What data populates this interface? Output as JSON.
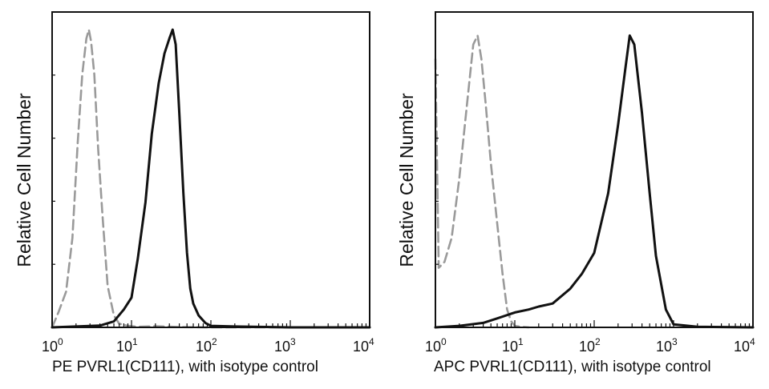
{
  "chart_data": [
    {
      "type": "line",
      "subtype": "flow-cytometry-histogram",
      "xlabel": "PE  PVRL1(CD111),  with isotype control",
      "ylabel": "Relative Cell Number",
      "xscale": "log",
      "xlim": [
        1,
        10000
      ],
      "ylim": [
        0,
        1
      ],
      "x_ticks": [
        {
          "base": "10",
          "exp": "0"
        },
        {
          "base": "10",
          "exp": "1"
        },
        {
          "base": "10",
          "exp": "2"
        },
        {
          "base": "10",
          "exp": "3"
        },
        {
          "base": "10",
          "exp": "4"
        }
      ],
      "series": [
        {
          "name": "Isotype control",
          "color": "#9a9a9a",
          "style": "dashed",
          "x": [
            1.0,
            1.2,
            1.5,
            1.8,
            2.1,
            2.4,
            2.7,
            2.9,
            3.1,
            3.4,
            3.8,
            4.3,
            5.0,
            6.0,
            7.0,
            9.0,
            12.0,
            20.0,
            40.0,
            100.0,
            1000.0,
            10000.0
          ],
          "values": [
            0.0,
            0.05,
            0.12,
            0.3,
            0.62,
            0.85,
            0.97,
            1.0,
            0.96,
            0.85,
            0.6,
            0.38,
            0.14,
            0.04,
            0.012,
            0.005,
            0.002,
            0.004,
            0.001,
            0.0,
            0.0,
            0.0
          ]
        },
        {
          "name": "PVRL1(CD111)",
          "color": "#111111",
          "style": "solid",
          "x": [
            1.0,
            2.0,
            4.0,
            6.0,
            8.0,
            10.0,
            12.0,
            15.0,
            18.0,
            22.0,
            26.0,
            30.0,
            33.0,
            36.0,
            40.0,
            45.0,
            50.0,
            55.0,
            60.0,
            70.0,
            85.0,
            100.0,
            200.0,
            1000.0,
            10000.0
          ],
          "values": [
            0.0,
            0.003,
            0.006,
            0.02,
            0.06,
            0.1,
            0.23,
            0.42,
            0.65,
            0.82,
            0.92,
            0.97,
            1.0,
            0.95,
            0.72,
            0.45,
            0.25,
            0.13,
            0.08,
            0.04,
            0.015,
            0.005,
            0.003,
            0.0,
            0.0
          ]
        }
      ]
    },
    {
      "type": "line",
      "subtype": "flow-cytometry-histogram",
      "xlabel": "APC PVRL1(CD111), with isotype control",
      "ylabel": "Relative Cell Number",
      "xscale": "log",
      "xlim": [
        1,
        10000
      ],
      "ylim": [
        0,
        1
      ],
      "x_ticks": [
        {
          "base": "10",
          "exp": "0"
        },
        {
          "base": "10",
          "exp": "1"
        },
        {
          "base": "10",
          "exp": "2"
        },
        {
          "base": "10",
          "exp": "3"
        },
        {
          "base": "10",
          "exp": "4"
        }
      ],
      "series": [
        {
          "name": "Isotype control",
          "color": "#9a9a9a",
          "style": "dashed",
          "x": [
            1.0,
            1.1,
            1.3,
            1.6,
            2.0,
            2.5,
            3.0,
            3.4,
            3.8,
            4.3,
            5.0,
            6.0,
            7.0,
            8.0,
            9.0,
            10.0,
            12.0,
            15.0
          ],
          "values": [
            0.9,
            0.2,
            0.22,
            0.3,
            0.5,
            0.75,
            0.95,
            0.98,
            0.9,
            0.75,
            0.55,
            0.35,
            0.18,
            0.06,
            0.02,
            0.005,
            0.002,
            0.0
          ]
        },
        {
          "name": "PVRL1(CD111)",
          "color": "#111111",
          "style": "solid",
          "x": [
            1.0,
            2.0,
            4.0,
            6.0,
            10.0,
            15.0,
            20.0,
            30.0,
            50.0,
            70.0,
            100.0,
            150.0,
            200.0,
            250.0,
            280.0,
            320.0,
            400.0,
            500.0,
            600.0,
            800.0,
            1000.0,
            2000.0,
            10000.0
          ],
          "values": [
            0.0,
            0.005,
            0.015,
            0.03,
            0.05,
            0.06,
            0.07,
            0.08,
            0.13,
            0.18,
            0.25,
            0.45,
            0.68,
            0.88,
            0.98,
            0.95,
            0.72,
            0.45,
            0.24,
            0.06,
            0.01,
            0.002,
            0.0
          ]
        }
      ]
    }
  ]
}
